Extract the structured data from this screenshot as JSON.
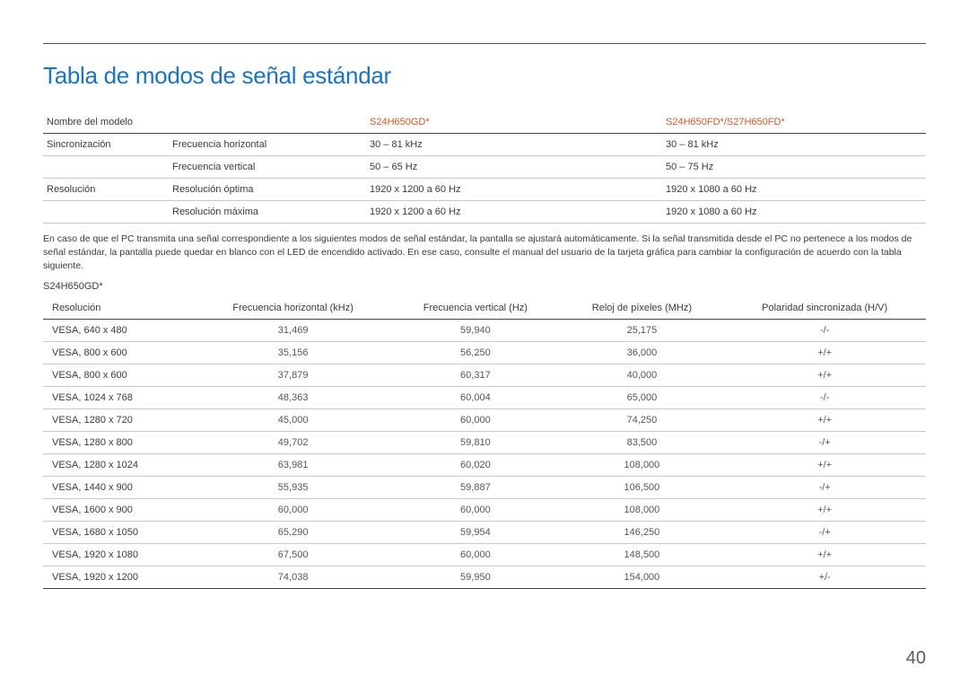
{
  "title": "Tabla de modos de señal estándar",
  "spec_header": {
    "label": "Nombre del modelo",
    "model1": "S24H650GD*",
    "model2": "S24H650FD*/S27H650FD*"
  },
  "spec_rows": [
    {
      "group": "Sincronización",
      "attr": "Frecuencia horizontal",
      "v1": "30 – 81 kHz",
      "v2": "30 – 81 kHz"
    },
    {
      "group": "",
      "attr": "Frecuencia vertical",
      "v1": "50 – 65 Hz",
      "v2": "50 – 75 Hz"
    },
    {
      "group": "Resolución",
      "attr": "Resolución óptima",
      "v1": "1920 x 1200 a 60 Hz",
      "v2": "1920 x 1080 a 60 Hz"
    },
    {
      "group": "",
      "attr": "Resolución máxima",
      "v1": "1920 x 1200 a 60 Hz",
      "v2": "1920 x 1080 a 60 Hz"
    }
  ],
  "paragraph": "En caso de que el PC transmita una señal correspondiente a los siguientes modos de señal estándar, la pantalla se ajustará automáticamente. Si la señal transmitida desde el PC no pertenece a los modos de señal estándar, la pantalla puede quedar en blanco con el LED de encendido activado. En ese caso, consulte el manual del usuario de la tarjeta gráfica para cambiar la configuración de acuerdo con la tabla siguiente.",
  "sub_header": "S24H650GD*",
  "mode_header": {
    "c1": "Resolución",
    "c2": "Frecuencia horizontal (kHz)",
    "c3": "Frecuencia vertical (Hz)",
    "c4": "Reloj de píxeles (MHz)",
    "c5": "Polaridad sincronizada (H/V)"
  },
  "mode_rows": [
    {
      "res": "VESA, 640 x 480",
      "fh": "31,469",
      "fv": "59,940",
      "clk": "25,175",
      "pol": "-/-"
    },
    {
      "res": "VESA, 800 x 600",
      "fh": "35,156",
      "fv": "56,250",
      "clk": "36,000",
      "pol": "+/+"
    },
    {
      "res": "VESA, 800 x 600",
      "fh": "37,879",
      "fv": "60,317",
      "clk": "40,000",
      "pol": "+/+"
    },
    {
      "res": "VESA, 1024 x 768",
      "fh": "48,363",
      "fv": "60,004",
      "clk": "65,000",
      "pol": "-/-"
    },
    {
      "res": "VESA, 1280 x 720",
      "fh": "45,000",
      "fv": "60,000",
      "clk": "74,250",
      "pol": "+/+"
    },
    {
      "res": "VESA, 1280 x 800",
      "fh": "49,702",
      "fv": "59,810",
      "clk": "83,500",
      "pol": "-/+"
    },
    {
      "res": "VESA, 1280 x 1024",
      "fh": "63,981",
      "fv": "60,020",
      "clk": "108,000",
      "pol": "+/+"
    },
    {
      "res": "VESA, 1440 x 900",
      "fh": "55,935",
      "fv": "59,887",
      "clk": "106,500",
      "pol": "-/+"
    },
    {
      "res": "VESA, 1600 x 900",
      "fh": "60,000",
      "fv": "60,000",
      "clk": "108,000",
      "pol": "+/+"
    },
    {
      "res": "VESA, 1680 x 1050",
      "fh": "65,290",
      "fv": "59,954",
      "clk": "146,250",
      "pol": "-/+"
    },
    {
      "res": "VESA, 1920 x 1080",
      "fh": "67,500",
      "fv": "60,000",
      "clk": "148,500",
      "pol": "+/+"
    },
    {
      "res": "VESA, 1920 x 1200",
      "fh": "74,038",
      "fv": "59,950",
      "clk": "154,000",
      "pol": "+/-"
    }
  ],
  "page_number": "40",
  "colors": {
    "title": "#1e73be",
    "model_accent": "#cc5a2b",
    "text": "#3a3a3a",
    "rule_dark": "#444444",
    "rule_light": "#c8c8c8"
  }
}
